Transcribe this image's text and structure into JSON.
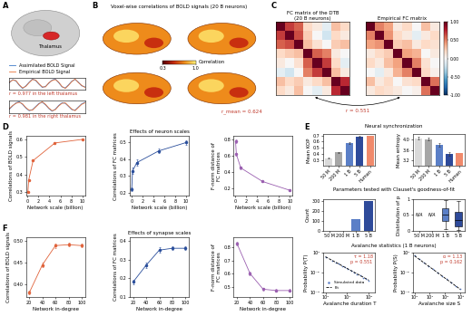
{
  "panel_labels": [
    "A",
    "B",
    "C",
    "D",
    "E",
    "F"
  ],
  "section_titles": [
    "Neural synchronization",
    "Parameters tested with Clauset's goodness-of-fit",
    "Avalanche statistics (1 B neurons)"
  ],
  "diagrams": {
    "A": {
      "label": "Thalamus"
    },
    "B": {
      "title": "Voxel-wise correlations of BOLD signals (20 B neurons)",
      "colorbar": {
        "label": "Correlation",
        "range": [
          0.3,
          1.0
        ],
        "ticks": [
          0.3,
          1.0
        ]
      },
      "annotation": "r_mean = 0.624"
    },
    "C": {
      "annotation": "r = 0.551"
    }
  },
  "chart_data": [
    {
      "type": "line",
      "x": [
        0,
        1,
        2,
        3,
        4,
        5,
        6,
        7,
        8,
        9,
        10,
        11,
        12,
        13,
        14,
        15,
        16,
        17,
        18,
        19,
        20,
        21,
        22,
        23
      ],
      "xlim": [
        0,
        23
      ],
      "ylim": [
        -1.2,
        1.2
      ],
      "tick_labels": false,
      "legend": "upper left",
      "annotations": [
        "r = 0.977 in the left thalamus"
      ],
      "series": [
        {
          "name": "Assimilated BOLD Signal",
          "color": "#3b78c8",
          "values": [
            0.2,
            0.8,
            0.5,
            -0.3,
            -0.9,
            -0.4,
            0.3,
            0.9,
            0.6,
            -0.1,
            -0.7,
            -0.5,
            0.1,
            0.7,
            0.9,
            0.2,
            -0.6,
            -0.8,
            -0.2,
            0.5,
            0.8,
            0.3,
            -0.4,
            -0.6
          ]
        },
        {
          "name": "Empirical BOLD Signal",
          "color": "#e8743b",
          "values": [
            0.3,
            0.7,
            0.6,
            -0.2,
            -0.8,
            -0.5,
            0.2,
            0.8,
            0.7,
            0.0,
            -0.6,
            -0.6,
            0.2,
            0.6,
            0.8,
            0.3,
            -0.5,
            -0.9,
            -0.3,
            0.4,
            0.9,
            0.2,
            -0.3,
            -0.7
          ]
        }
      ]
    },
    {
      "type": "line",
      "x": [
        0,
        1,
        2,
        3,
        4,
        5,
        6,
        7,
        8,
        9,
        10,
        11,
        12,
        13,
        14,
        15,
        16,
        17,
        18,
        19,
        20,
        21,
        22,
        23
      ],
      "xlim": [
        0,
        23
      ],
      "ylim": [
        -1.2,
        1.2
      ],
      "tick_labels": false,
      "annotations": [
        "r = 0.981 in the right thalamus"
      ],
      "series": [
        {
          "color": "#3b78c8",
          "values": [
            -0.5,
            0.1,
            0.7,
            0.9,
            0.4,
            -0.3,
            -0.8,
            -0.6,
            0.0,
            0.6,
            0.8,
            0.3,
            -0.4,
            -0.9,
            -0.5,
            0.2,
            0.7,
            0.6,
            0.0,
            -0.6,
            -0.7,
            -0.1,
            0.5,
            0.8
          ]
        },
        {
          "color": "#e8743b",
          "values": [
            -0.4,
            0.2,
            0.6,
            0.8,
            0.5,
            -0.2,
            -0.7,
            -0.7,
            -0.1,
            0.5,
            0.9,
            0.4,
            -0.3,
            -0.8,
            -0.6,
            0.1,
            0.6,
            0.7,
            0.1,
            -0.5,
            -0.8,
            -0.2,
            0.4,
            0.7
          ]
        }
      ]
    },
    {
      "type": "heatmap",
      "title": "FC matrix of the DTB\n(20 B neurons)",
      "tick_labels": false,
      "cells": [
        [
          1.0,
          0.7,
          0.6,
          0.2,
          0.1,
          -0.1,
          0.3,
          0.2
        ],
        [
          0.7,
          1.0,
          0.65,
          0.25,
          0.0,
          -0.2,
          0.2,
          0.1
        ],
        [
          0.6,
          0.65,
          1.0,
          0.3,
          0.15,
          0.0,
          0.25,
          0.3
        ],
        [
          0.2,
          0.25,
          0.3,
          1.0,
          0.6,
          0.5,
          0.1,
          0.0
        ],
        [
          0.1,
          0.0,
          0.15,
          0.6,
          1.0,
          0.7,
          0.2,
          -0.1
        ],
        [
          -0.1,
          -0.2,
          0.0,
          0.5,
          0.7,
          1.0,
          0.3,
          0.1
        ],
        [
          0.3,
          0.2,
          0.25,
          0.1,
          0.2,
          0.3,
          1.0,
          0.75
        ],
        [
          0.2,
          0.1,
          0.3,
          0.0,
          -0.1,
          0.1,
          0.75,
          1.0
        ]
      ]
    },
    {
      "type": "heatmap",
      "title": "Empirical FC matrix",
      "tick_labels": false,
      "cells": [
        [
          1.0,
          0.5,
          0.4,
          0.1,
          0.2,
          0.0,
          0.3,
          0.1
        ],
        [
          0.5,
          1.0,
          0.45,
          0.2,
          0.1,
          -0.1,
          0.1,
          0.2
        ],
        [
          0.4,
          0.45,
          1.0,
          0.25,
          0.3,
          0.1,
          0.2,
          0.15
        ],
        [
          0.1,
          0.2,
          0.25,
          1.0,
          0.4,
          0.35,
          0.0,
          0.1
        ],
        [
          0.2,
          0.1,
          0.3,
          0.4,
          1.0,
          0.5,
          0.15,
          0.0
        ],
        [
          0.0,
          -0.1,
          0.1,
          0.35,
          0.5,
          1.0,
          0.2,
          0.05
        ],
        [
          0.3,
          0.1,
          0.2,
          0.0,
          0.15,
          0.2,
          1.0,
          0.55
        ],
        [
          0.1,
          0.2,
          0.15,
          0.1,
          0.0,
          0.05,
          0.55,
          1.0
        ]
      ],
      "colorbar": {
        "range": [
          -1,
          1
        ],
        "ticks": [
          {
            "value": -1,
            "label": "-1.00"
          },
          {
            "value": -0.5,
            "label": "-0.50"
          },
          {
            "value": 0,
            "label": "0.00"
          },
          {
            "value": 0.5,
            "label": "0.50"
          },
          {
            "value": 1,
            "label": "1.00"
          }
        ]
      }
    },
    {
      "type": "line",
      "xlabel": "Network scale (billion)",
      "ylabel": "Correlations of BOLD signals",
      "x": [
        0.05,
        0.2,
        1,
        5,
        10
      ],
      "xlim": [
        -0.3,
        10.5
      ],
      "xticks": [
        0,
        2,
        4,
        6,
        8,
        10
      ],
      "ylim": [
        0.28,
        0.62
      ],
      "yticks": [
        0.3,
        0.4,
        0.5,
        0.6
      ],
      "series": [
        {
          "color": "#e0623a",
          "marker": "circle",
          "values": [
            0.3,
            0.37,
            0.48,
            0.58,
            0.6
          ]
        }
      ]
    },
    {
      "type": "line",
      "title": "Effects of neuron scales",
      "xlabel": "Network scale (billion)",
      "ylabel": "Correlations of FC matrices",
      "x": [
        0.05,
        0.2,
        1,
        5,
        10
      ],
      "xlim": [
        -0.3,
        10.5
      ],
      "xticks": [
        0,
        2,
        4,
        6,
        8,
        10
      ],
      "ylim": [
        0.18,
        0.54
      ],
      "yticks": [
        0.2,
        0.3,
        0.4,
        0.5
      ],
      "series": [
        {
          "color": "#2a4e9b",
          "marker": "circle",
          "values": [
            0.22,
            0.33,
            0.38,
            0.45,
            0.5
          ],
          "errors": [
            0.01,
            0.02,
            0.02,
            0.015,
            0.015
          ]
        }
      ]
    },
    {
      "type": "line",
      "xlabel": "Network scale (billion)",
      "ylabel": "F-norm distance of\nFC matrices",
      "x": [
        0.05,
        0.2,
        1,
        5,
        10
      ],
      "xlim": [
        -0.3,
        10.5
      ],
      "xticks": [
        0,
        2,
        4,
        6,
        8,
        10
      ],
      "ylim": [
        0.1,
        0.85
      ],
      "yticks": [
        0.2,
        0.4,
        0.6,
        0.8
      ],
      "series": [
        {
          "color": "#9a5fb0",
          "marker": "circle",
          "values": [
            0.78,
            0.62,
            0.45,
            0.28,
            0.17
          ],
          "errors": [
            0.02,
            0.02,
            0.02,
            0.01,
            0.01
          ]
        }
      ]
    },
    {
      "type": "line",
      "xlabel": "Network in-degree",
      "ylabel": "Correlations of BOLD signals",
      "x": [
        20,
        40,
        60,
        80,
        100
      ],
      "xlim": [
        15,
        105
      ],
      "xticks": [
        20,
        40,
        60,
        80,
        100
      ],
      "ylim": [
        0.37,
        0.51
      ],
      "yticks": [
        {
          "value": 0.4,
          "label": "0.40"
        },
        {
          "value": 0.45,
          "label": "0.45"
        },
        {
          "value": 0.5,
          "label": "0.50"
        }
      ],
      "series": [
        {
          "color": "#e0623a",
          "marker": "circle",
          "values": [
            0.38,
            0.445,
            0.49,
            0.492,
            0.49
          ],
          "errors": [
            0.004,
            0.005,
            0.005,
            0.004,
            0.004
          ]
        }
      ]
    },
    {
      "type": "line",
      "title": "Effects of synapse scales",
      "xlabel": "Network in-degree",
      "ylabel": "Correlations of FC matrices",
      "x": [
        20,
        40,
        60,
        80,
        100
      ],
      "xlim": [
        15,
        105
      ],
      "xticks": [
        20,
        40,
        60,
        80,
        100
      ],
      "ylim": [
        0.1,
        0.42
      ],
      "yticks": [
        0.1,
        0.2,
        0.3,
        0.4
      ],
      "series": [
        {
          "color": "#2a4e9b",
          "marker": "circle",
          "values": [
            0.18,
            0.27,
            0.35,
            0.36,
            0.36
          ],
          "errors": [
            0.01,
            0.015,
            0.015,
            0.01,
            0.01
          ]
        }
      ]
    },
    {
      "type": "line",
      "xlabel": "Network in-degree",
      "ylabel": "F-norm distance of\nFC matrices",
      "x": [
        20,
        40,
        60,
        80,
        100
      ],
      "xlim": [
        15,
        105
      ],
      "xticks": [
        20,
        40,
        60,
        80,
        100
      ],
      "ylim": [
        0.42,
        0.88
      ],
      "yticks": [
        0.5,
        0.6,
        0.7,
        0.8
      ],
      "series": [
        {
          "color": "#9a5fb0",
          "marker": "circle",
          "values": [
            0.83,
            0.6,
            0.48,
            0.47,
            0.47
          ],
          "errors": [
            0.015,
            0.015,
            0.01,
            0.01,
            0.01
          ]
        }
      ]
    },
    {
      "type": "bar",
      "ylabel": "Mean KOP",
      "categories": [
        "50 M",
        "200 M",
        "1 B",
        "5 B",
        "Human"
      ],
      "values": [
        0.33,
        0.42,
        0.58,
        0.68,
        0.7
      ],
      "errors": [
        0.01,
        0.01,
        0.015,
        0.01,
        null
      ],
      "colors": [
        "#d9d9d9",
        "#a6a6a6",
        "#5b7fc7",
        "#2e4a9a",
        "#f08a6c"
      ],
      "ylim": [
        0.2,
        0.72
      ],
      "yticks": [
        0.3,
        0.4,
        0.5,
        0.6,
        0.7
      ]
    },
    {
      "type": "bar",
      "ylabel": "Mean entropy",
      "categories": [
        "50 M",
        "200 M",
        "1 B",
        "5 B",
        "Human"
      ],
      "values": [
        4.05,
        4.02,
        3.8,
        3.45,
        3.5
      ],
      "errors": [
        0.05,
        0.06,
        0.08,
        0.07,
        null
      ],
      "colors": [
        "#d9d9d9",
        "#a6a6a6",
        "#5b7fc7",
        "#2e4a9a",
        "#f08a6c"
      ],
      "ylim": [
        3.0,
        4.2
      ],
      "yticks": [
        3.2,
        3.6,
        4.0
      ]
    },
    {
      "type": "bar",
      "ylabel": "Count",
      "categories": [
        "50 M",
        "200 M",
        "1 B",
        "5 B"
      ],
      "values": [
        0,
        0,
        120,
        300
      ],
      "colors": [
        "#d9d9d9",
        "#a6a6a6",
        "#5b7fc7",
        "#2e4a9a"
      ],
      "ylim": [
        0,
        320
      ],
      "yticks": [
        0,
        100,
        200,
        300
      ]
    },
    {
      "type": "box",
      "ylabel": "Distribution of p",
      "categories": [
        "50 M",
        "200 M",
        "1 B",
        "5 B"
      ],
      "missing_label": "N/A",
      "boxes": [
        null,
        null,
        {
          "whislo": 0.05,
          "q1": 0.3,
          "med": 0.5,
          "q3": 0.7,
          "whishi": 0.98,
          "color": "#5b7fc7"
        },
        {
          "whislo": 0.02,
          "q1": 0.15,
          "med": 0.35,
          "q3": 0.6,
          "whishi": 0.95,
          "color": "#2e4a9a"
        }
      ],
      "ylim": [
        0,
        1
      ],
      "yticks": [
        0,
        0.5,
        1
      ]
    },
    {
      "type": "line",
      "log": true,
      "xlabel": "Avalanche duration T",
      "ylabel": "Probability P(T)",
      "legend": "lower left",
      "annotations": [
        "τ = 1.18",
        "p = 0.551"
      ],
      "xlim": [
        0.8,
        200
      ],
      "xticks": [
        {
          "value": 1,
          "label": "10⁰"
        },
        {
          "value": 10,
          "label": "10¹"
        },
        {
          "value": 100,
          "label": "10²"
        }
      ],
      "ylim": [
        0.0001,
        1
      ],
      "yticks": [
        {
          "value": 0.0001,
          "label": "10⁻⁴"
        },
        {
          "value": 0.01,
          "label": "10⁻²"
        },
        {
          "value": 1,
          "label": "10⁰"
        }
      ],
      "series": [
        {
          "name": "Simulated data",
          "type": "scatter",
          "marker": "circle",
          "color": "#5b7fc7",
          "x": [
            1,
            2,
            3,
            4,
            6,
            8,
            11,
            15,
            20,
            28,
            40,
            55,
            75,
            100
          ],
          "values": [
            0.4,
            0.17,
            0.11,
            0.078,
            0.048,
            0.034,
            0.023,
            0.016,
            0.011,
            0.0072,
            0.0048,
            0.0031,
            0.0022,
            0.0014
          ]
        },
        {
          "name": "Fit",
          "type": "line",
          "line_style": "dashed",
          "color": "#000000",
          "x": [
            1,
            100
          ],
          "values": [
            0.4,
            0.0017
          ]
        }
      ]
    },
    {
      "type": "line",
      "log": true,
      "xlabel": "Avalanche size S",
      "ylabel": "Probability P(S)",
      "annotations": [
        "α = 1.13",
        "p = 0.162"
      ],
      "xlim": [
        0.8,
        2000
      ],
      "xticks": [
        {
          "value": 1,
          "label": "10⁰"
        },
        {
          "value": 10,
          "label": "10¹"
        },
        {
          "value": 100,
          "label": "10²"
        },
        {
          "value": 1000,
          "label": "10³"
        }
      ],
      "ylim": [
        0.0001,
        1
      ],
      "yticks": [
        {
          "value": 0.0001,
          "label": "10⁻⁴"
        },
        {
          "value": 0.01,
          "label": "10⁻²"
        },
        {
          "value": 1,
          "label": "10⁰"
        }
      ],
      "series": [
        {
          "type": "scatter",
          "marker": "circle",
          "color": "#5b7fc7",
          "x": [
            1,
            2,
            4,
            8,
            16,
            32,
            64,
            128,
            256,
            512,
            1000
          ],
          "values": [
            0.5,
            0.23,
            0.1,
            0.047,
            0.022,
            0.01,
            0.0045,
            0.0021,
            0.00095,
            0.00045,
            0.00023
          ]
        },
        {
          "type": "line",
          "line_style": "dashed",
          "color": "#000000",
          "x": [
            1,
            1000
          ],
          "values": [
            0.5,
            0.0002
          ]
        }
      ]
    }
  ]
}
